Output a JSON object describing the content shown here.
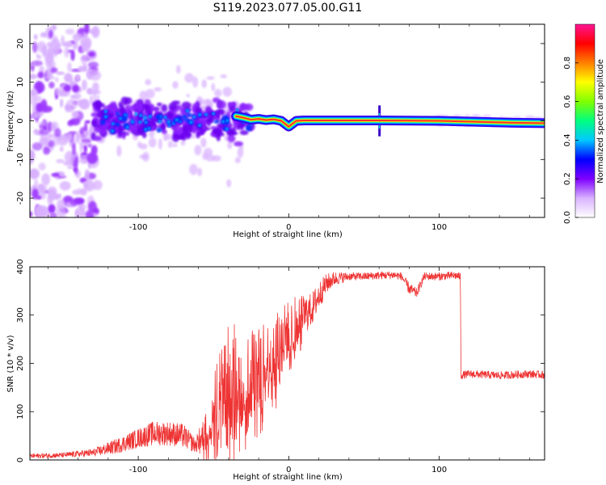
{
  "title": "S119.2023.077.05.00.G11",
  "chart_data": [
    {
      "type": "heatmap",
      "xlabel": "Height of straight line (km)",
      "ylabel": "Frequency (Hz)",
      "xlim": [
        -172,
        170
      ],
      "ylim": [
        -25,
        25
      ],
      "x_ticks": [
        -100,
        0,
        100
      ],
      "y_ticks": [
        -20,
        -10,
        0,
        10,
        20
      ],
      "colorbar": {
        "label": "Normalized spectral amplitude",
        "range": [
          0,
          1
        ],
        "ticks": [
          "0.0",
          "0.2",
          "0.4",
          "0.6",
          "0.8"
        ],
        "colormap": [
          "#ffffff",
          "#d9b3ff",
          "#7f00ff",
          "#0000ff",
          "#00c8ff",
          "#00ff80",
          "#80ff00",
          "#ffff00",
          "#ff8000",
          "#ff0000",
          "#ff1493"
        ]
      },
      "ridge": {
        "description_points_x": [
          -35,
          -30,
          -25,
          -20,
          -15,
          -10,
          -5,
          0,
          5,
          10,
          60,
          100,
          150,
          170
        ],
        "frequency": [
          1.2,
          0.8,
          0.3,
          0.5,
          0.2,
          0.4,
          0.0,
          -1.5,
          0.0,
          0.1,
          0.1,
          0.0,
          -0.5,
          -0.6
        ]
      }
    },
    {
      "type": "line",
      "xlabel": "Height of straight line (km)",
      "ylabel": "SNR (10 * v/v)",
      "xlim": [
        -172,
        170
      ],
      "ylim": [
        0,
        400
      ],
      "x_ticks": [
        -100,
        0,
        100
      ],
      "y_ticks": [
        0,
        100,
        200,
        300,
        400
      ],
      "series": [
        {
          "color": "#ee3333",
          "x": [
            -172,
            -150,
            -130,
            -115,
            -100,
            -90,
            -80,
            -70,
            -62,
            -55,
            -50,
            -45,
            -40,
            -35,
            -30,
            -25,
            -20,
            -15,
            -10,
            -5,
            0,
            5,
            10,
            15,
            20,
            25,
            30,
            40,
            50,
            60,
            70,
            75,
            80,
            85,
            90,
            100,
            110,
            114,
            114.5,
            120,
            140,
            160,
            170
          ],
          "y": [
            8,
            10,
            15,
            28,
            45,
            55,
            55,
            50,
            30,
            60,
            100,
            150,
            170,
            175,
            180,
            180,
            185,
            200,
            220,
            250,
            270,
            290,
            300,
            310,
            340,
            365,
            375,
            380,
            380,
            382,
            383,
            380,
            355,
            345,
            380,
            380,
            382,
            380,
            175,
            178,
            175,
            178,
            176
          ],
          "noise": [
            5,
            5,
            8,
            15,
            20,
            25,
            25,
            25,
            15,
            40,
            70,
            90,
            110,
            110,
            110,
            100,
            90,
            85,
            80,
            70,
            60,
            50,
            40,
            35,
            30,
            20,
            15,
            8,
            8,
            8,
            8,
            8,
            12,
            10,
            8,
            8,
            8,
            8,
            8,
            8,
            8,
            8,
            8
          ]
        }
      ]
    }
  ]
}
